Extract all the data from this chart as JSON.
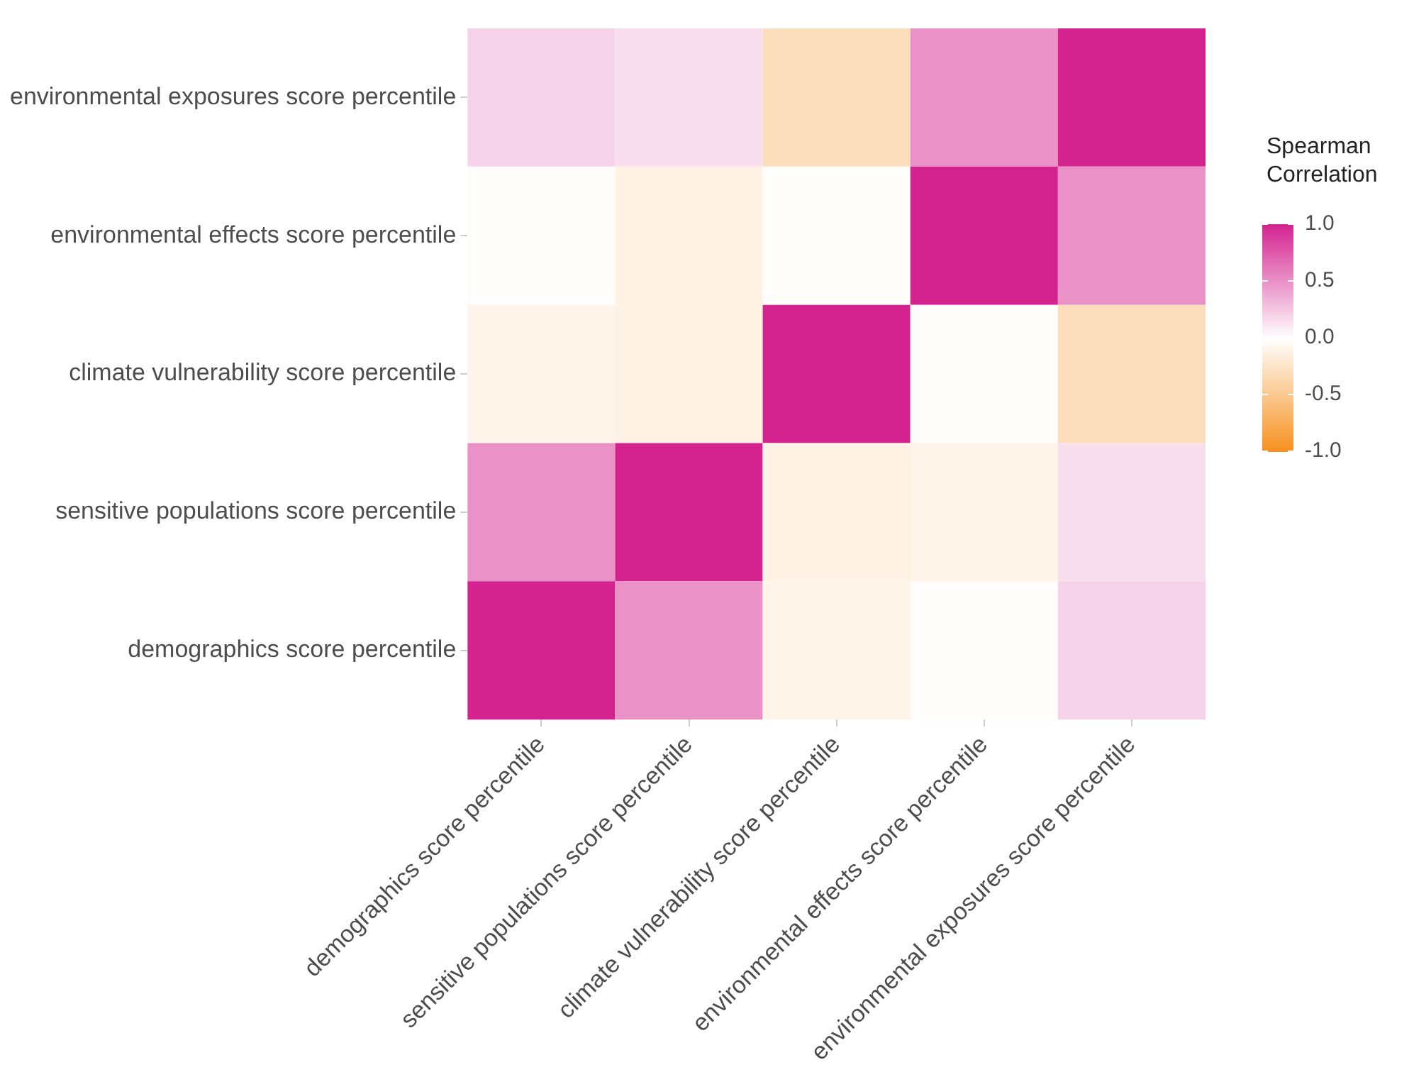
{
  "chart_data": {
    "type": "heatmap",
    "categories": [
      "demographics score percentile",
      "sensitive populations score percentile",
      "climate vulnerability score percentile",
      "environmental effects score percentile",
      "environmental exposures score percentile"
    ],
    "y_categories": [
      "environmental exposures score percentile",
      "environmental effects score percentile",
      "climate vulnerability score percentile",
      "sensitive populations score percentile",
      "demographics score percentile"
    ],
    "cells": [
      [
        0.2,
        0.15,
        -0.3,
        0.5,
        1
      ],
      [
        -0.02,
        -0.12,
        -0.02,
        1,
        0.5
      ],
      [
        -0.1,
        -0.12,
        1,
        -0.02,
        -0.3
      ],
      [
        0.5,
        1,
        -0.12,
        -0.1,
        0.15
      ],
      [
        1,
        0.5,
        -0.1,
        -0.02,
        0.2
      ]
    ],
    "clabel": "Spearman Correlation",
    "clim": [
      -1,
      1
    ],
    "cticks": [
      {
        "value": 1,
        "label": "1.0"
      },
      {
        "value": 0.5,
        "label": "0.5"
      },
      {
        "value": 0,
        "label": "0.0"
      },
      {
        "value": -0.5,
        "label": "-0.5"
      },
      {
        "value": -1,
        "label": "-1.0"
      }
    ]
  }
}
